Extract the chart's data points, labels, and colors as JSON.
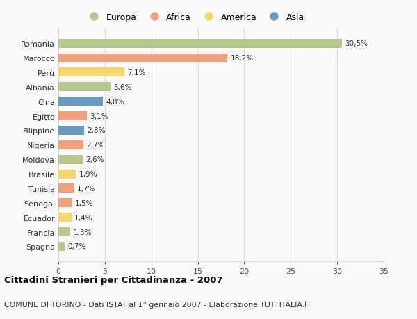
{
  "countries": [
    "Spagna",
    "Francia",
    "Ecuador",
    "Senegal",
    "Tunisia",
    "Brasile",
    "Moldova",
    "Nigeria",
    "Filippine",
    "Egitto",
    "Cina",
    "Albania",
    "Perù",
    "Marocco",
    "Romania"
  ],
  "values": [
    0.7,
    1.3,
    1.4,
    1.5,
    1.7,
    1.9,
    2.6,
    2.7,
    2.8,
    3.1,
    4.8,
    5.6,
    7.1,
    18.2,
    30.5
  ],
  "labels": [
    "0,7%",
    "1,3%",
    "1,4%",
    "1,5%",
    "1,7%",
    "1,9%",
    "2,6%",
    "2,7%",
    "2,8%",
    "3,1%",
    "4,8%",
    "5,6%",
    "7,1%",
    "18,2%",
    "30,5%"
  ],
  "colors": [
    "#b5c98e",
    "#b5c98e",
    "#f5d76e",
    "#f0a07a",
    "#f0a07a",
    "#f5d76e",
    "#b5c98e",
    "#f0a07a",
    "#6b9abf",
    "#f0a07a",
    "#6b9abf",
    "#b5c98e",
    "#f5d76e",
    "#f0a07a",
    "#b5c98e"
  ],
  "legend": [
    {
      "label": "Europa",
      "color": "#b5c98e"
    },
    {
      "label": "Africa",
      "color": "#f0a07a"
    },
    {
      "label": "America",
      "color": "#f5d76e"
    },
    {
      "label": "Asia",
      "color": "#6b9abf"
    }
  ],
  "xlim": [
    0,
    35
  ],
  "xticks": [
    0,
    5,
    10,
    15,
    20,
    25,
    30,
    35
  ],
  "title": "Cittadini Stranieri per Cittadinanza - 2007",
  "subtitle": "COMUNE DI TORINO - Dati ISTAT al 1° gennaio 2007 - Elaborazione TUTTITALIA.IT",
  "background_color": "#f9f9f9",
  "grid_color": "#dddddd"
}
